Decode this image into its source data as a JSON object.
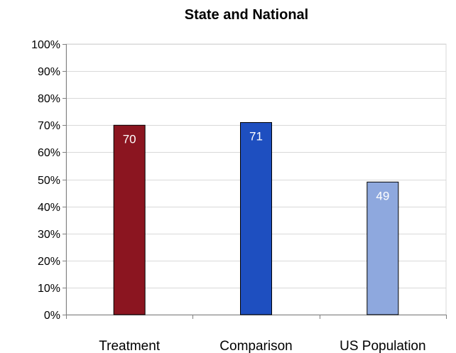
{
  "chart_data": {
    "type": "bar",
    "title": "State and National",
    "xlabel": "",
    "ylabel": "",
    "categories": [
      "Treatment",
      "Comparison",
      "US Population"
    ],
    "values": [
      70,
      71,
      49
    ],
    "data_labels": [
      "70",
      "71",
      "49"
    ],
    "ylim": [
      0,
      100
    ],
    "yticks": [
      0,
      10,
      20,
      30,
      40,
      50,
      60,
      70,
      80,
      90,
      100
    ],
    "ytick_labels": [
      "0%",
      "10%",
      "20%",
      "30%",
      "40%",
      "50%",
      "60%",
      "70%",
      "80%",
      "90%",
      "100%"
    ],
    "grid": true,
    "legend": "none",
    "bar_colors": [
      "#8b1520",
      "#1e4fc0",
      "#8ea8de"
    ],
    "bar_edge_color": "#000000",
    "grid_color": "#d9d9d9",
    "axis_color": "#808080"
  }
}
